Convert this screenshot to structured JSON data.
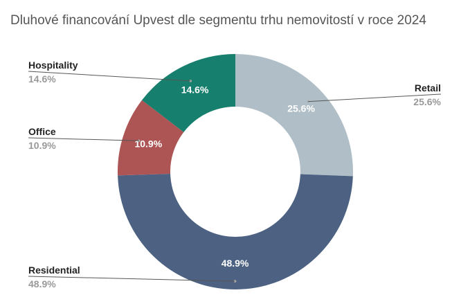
{
  "chart_data": {
    "type": "donut",
    "title": "Dluhové financování Upvest dle segmentu trhu nemovitostí v roce 2024",
    "unit": "%",
    "slices": [
      {
        "label": "Retail",
        "value": 25.6,
        "value_label": "25.6%",
        "color": "#b0bfc7"
      },
      {
        "label": "Residential",
        "value": 48.9,
        "value_label": "48.9%",
        "color": "#4d6282"
      },
      {
        "label": "Office",
        "value": 10.9,
        "value_label": "10.9%",
        "color": "#ad5555"
      },
      {
        "label": "Hospitality",
        "value": 14.6,
        "value_label": "14.6%",
        "color": "#167f6e"
      }
    ],
    "legend": "callouts",
    "label_color": "#ffffff",
    "category_label_color": "#222222",
    "percent_label_color": "#999999"
  }
}
